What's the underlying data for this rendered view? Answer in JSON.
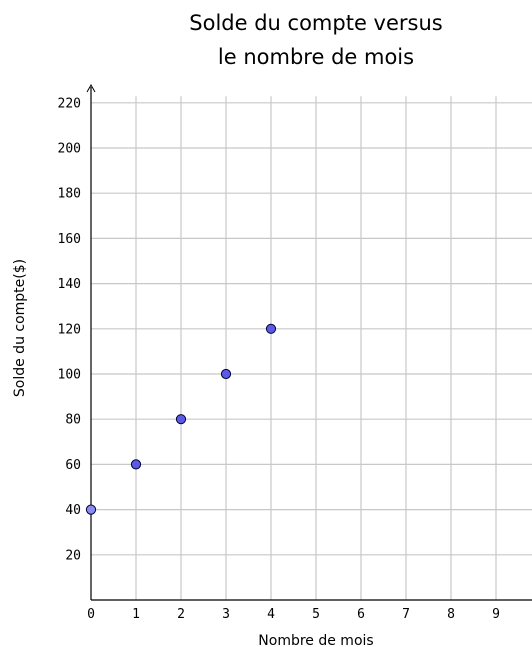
{
  "chart_data": {
    "type": "scatter",
    "title": [
      "Solde du compte versus",
      "le nombre de mois"
    ],
    "xlabel": "Nombre de mois",
    "ylabel": "Solde du compte($)",
    "xlim": [
      0,
      9.9
    ],
    "ylim": [
      0,
      222
    ],
    "xticks": [
      0,
      1,
      2,
      3,
      4,
      5,
      6,
      7,
      8,
      9
    ],
    "yticks": [
      20,
      40,
      60,
      80,
      100,
      120,
      140,
      160,
      180,
      200,
      220
    ],
    "grid": true,
    "points": [
      {
        "x": 0,
        "y": 40
      },
      {
        "x": 1,
        "y": 60
      },
      {
        "x": 2,
        "y": 80
      },
      {
        "x": 3,
        "y": 100
      },
      {
        "x": 4,
        "y": 120
      }
    ]
  },
  "colors": {
    "grid": "#c8c8c8",
    "axis": "#000000",
    "point_fill": "#5a5ae6",
    "point_fill_first": "#8c8cf0",
    "point_stroke": "#000033"
  }
}
